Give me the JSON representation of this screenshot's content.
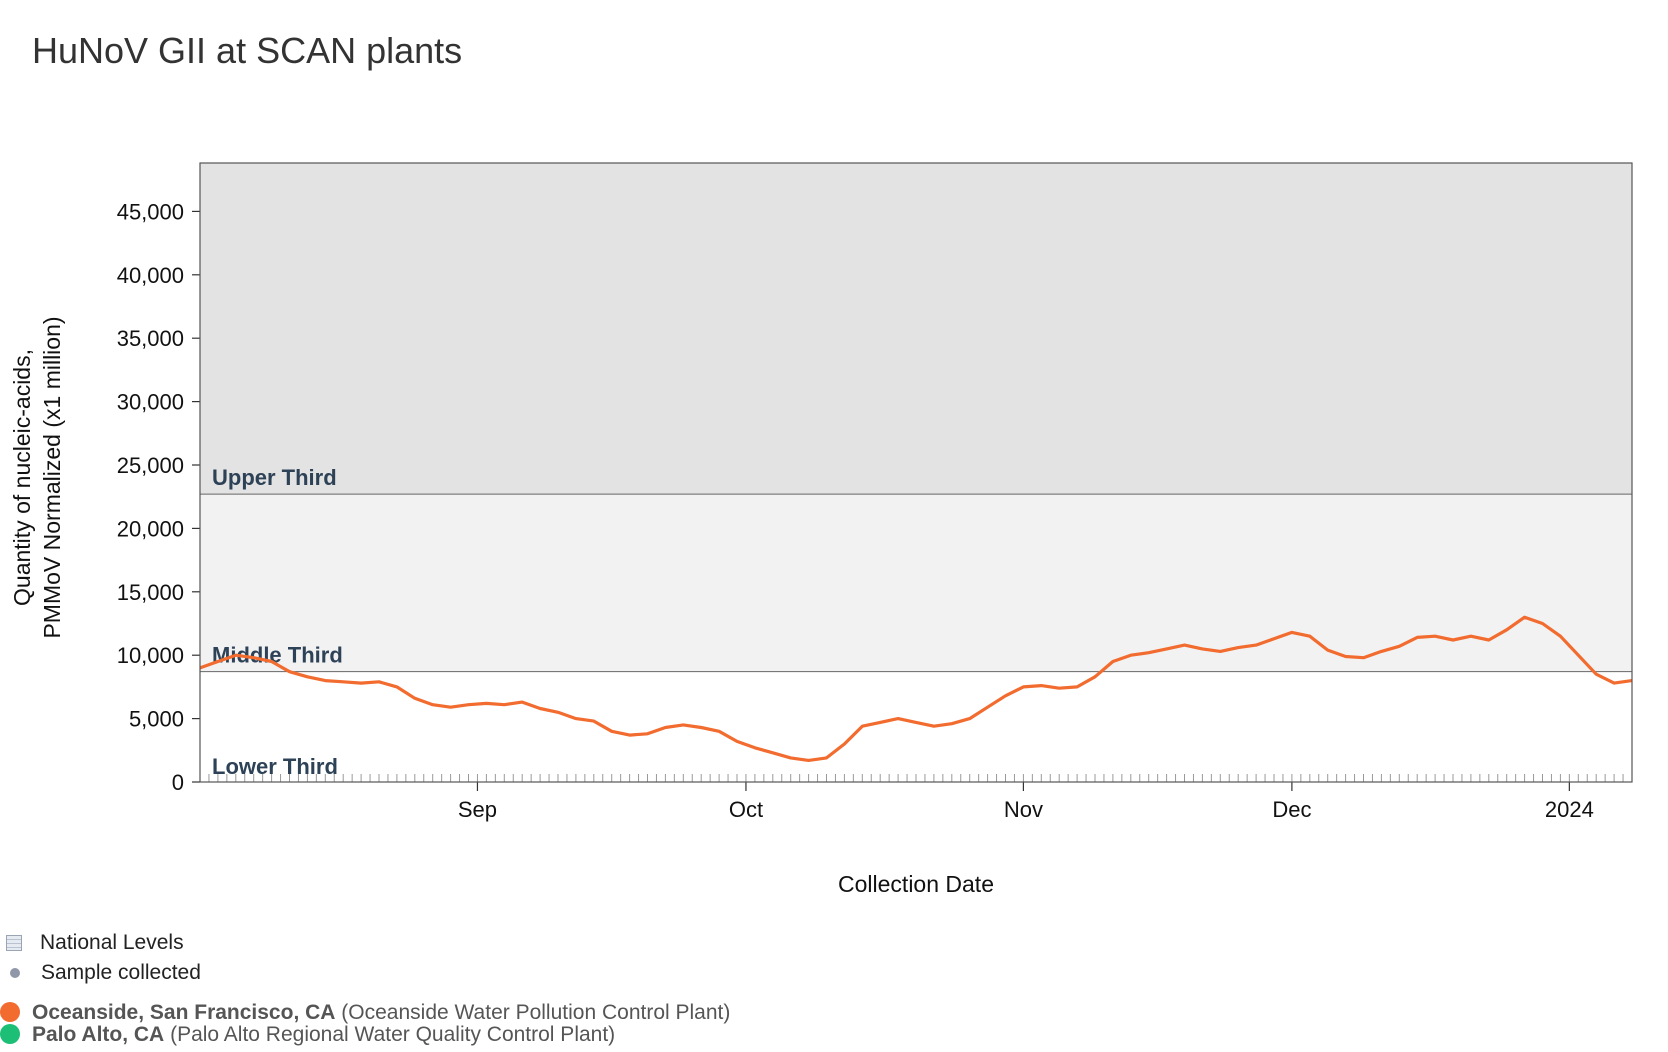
{
  "title": "HuNoV GII at SCAN plants",
  "legend": {
    "national_levels": "National Levels",
    "sample_collected": "Sample collected",
    "sites": [
      {
        "name": "Oceanside, San Francisco, CA",
        "detail": "(Oceanside Water Pollution Control Plant)",
        "color": "#f26b2f"
      },
      {
        "name": "Palo Alto, CA",
        "detail": "(Palo Alto Regional Water Quality Control Plant)",
        "color": "#1dbf76"
      }
    ]
  },
  "chart_data": {
    "type": "line",
    "title": "HuNoV GII at SCAN plants",
    "xlabel": "Collection Date",
    "ylabel": "Quantity of nucleic-acids, PMMoV Normalized (x1 million)",
    "ylim": [
      0,
      50000
    ],
    "xlim": [
      "2023-08-01",
      "2024-01-08"
    ],
    "y_ticks": [
      "0",
      "5,000",
      "10,000",
      "15,000",
      "20,000",
      "25,000",
      "30,000",
      "35,000",
      "40,000",
      "45,000"
    ],
    "x_ticks": [
      {
        "date": "2023-09-01",
        "label": "Sep"
      },
      {
        "date": "2023-10-01",
        "label": "Oct"
      },
      {
        "date": "2023-11-01",
        "label": "Nov"
      },
      {
        "date": "2023-12-01",
        "label": "Dec"
      },
      {
        "date": "2024-01-01",
        "label": "2024"
      }
    ],
    "grid": false,
    "bands": [
      {
        "label": "Lower Third",
        "from": 0,
        "to": 8700,
        "color": "#ffffff"
      },
      {
        "label": "Middle Third",
        "from": 8700,
        "to": 22700,
        "color": "#f2f2f2"
      },
      {
        "label": "Upper Third",
        "from": 22700,
        "to": 50000,
        "color": "#e3e3e3"
      }
    ],
    "series": [
      {
        "name": "Oceanside, San Francisco, CA",
        "color": "#f26b2f",
        "points": [
          [
            "2023-08-01",
            9000
          ],
          [
            "2023-08-03",
            9500
          ],
          [
            "2023-08-05",
            10000
          ],
          [
            "2023-08-07",
            9800
          ],
          [
            "2023-08-09",
            9500
          ],
          [
            "2023-08-11",
            8700
          ],
          [
            "2023-08-13",
            8300
          ],
          [
            "2023-08-15",
            8000
          ],
          [
            "2023-08-17",
            7900
          ],
          [
            "2023-08-19",
            7800
          ],
          [
            "2023-08-21",
            7900
          ],
          [
            "2023-08-23",
            7500
          ],
          [
            "2023-08-25",
            6600
          ],
          [
            "2023-08-27",
            6100
          ],
          [
            "2023-08-29",
            5900
          ],
          [
            "2023-08-31",
            6100
          ],
          [
            "2023-09-02",
            6200
          ],
          [
            "2023-09-04",
            6100
          ],
          [
            "2023-09-06",
            6300
          ],
          [
            "2023-09-08",
            5800
          ],
          [
            "2023-09-10",
            5500
          ],
          [
            "2023-09-12",
            5000
          ],
          [
            "2023-09-14",
            4800
          ],
          [
            "2023-09-16",
            4000
          ],
          [
            "2023-09-18",
            3700
          ],
          [
            "2023-09-20",
            3800
          ],
          [
            "2023-09-22",
            4300
          ],
          [
            "2023-09-24",
            4500
          ],
          [
            "2023-09-26",
            4300
          ],
          [
            "2023-09-28",
            4000
          ],
          [
            "2023-09-30",
            3200
          ],
          [
            "2023-10-02",
            2700
          ],
          [
            "2023-10-04",
            2300
          ],
          [
            "2023-10-06",
            1900
          ],
          [
            "2023-10-08",
            1700
          ],
          [
            "2023-10-10",
            1900
          ],
          [
            "2023-10-12",
            3000
          ],
          [
            "2023-10-14",
            4400
          ],
          [
            "2023-10-16",
            4700
          ],
          [
            "2023-10-18",
            5000
          ],
          [
            "2023-10-20",
            4700
          ],
          [
            "2023-10-22",
            4400
          ],
          [
            "2023-10-24",
            4600
          ],
          [
            "2023-10-26",
            5000
          ],
          [
            "2023-10-28",
            5900
          ],
          [
            "2023-10-30",
            6800
          ],
          [
            "2023-11-01",
            7500
          ],
          [
            "2023-11-03",
            7600
          ],
          [
            "2023-11-05",
            7400
          ],
          [
            "2023-11-07",
            7500
          ],
          [
            "2023-11-09",
            8300
          ],
          [
            "2023-11-11",
            9500
          ],
          [
            "2023-11-13",
            10000
          ],
          [
            "2023-11-15",
            10200
          ],
          [
            "2023-11-17",
            10500
          ],
          [
            "2023-11-19",
            10800
          ],
          [
            "2023-11-21",
            10500
          ],
          [
            "2023-11-23",
            10300
          ],
          [
            "2023-11-25",
            10600
          ],
          [
            "2023-11-27",
            10800
          ],
          [
            "2023-11-29",
            11300
          ],
          [
            "2023-12-01",
            11800
          ],
          [
            "2023-12-03",
            11500
          ],
          [
            "2023-12-05",
            10400
          ],
          [
            "2023-12-07",
            9900
          ],
          [
            "2023-12-09",
            9800
          ],
          [
            "2023-12-11",
            10300
          ],
          [
            "2023-12-13",
            10700
          ],
          [
            "2023-12-15",
            11400
          ],
          [
            "2023-12-17",
            11500
          ],
          [
            "2023-12-19",
            11200
          ],
          [
            "2023-12-21",
            11500
          ],
          [
            "2023-12-23",
            11200
          ],
          [
            "2023-12-25",
            12000
          ],
          [
            "2023-12-27",
            13000
          ],
          [
            "2023-12-29",
            12500
          ],
          [
            "2023-12-31",
            11500
          ],
          [
            "2024-01-02",
            10000
          ],
          [
            "2024-01-04",
            8500
          ],
          [
            "2024-01-06",
            7800
          ],
          [
            "2024-01-08",
            8000
          ]
        ]
      },
      {
        "name": "Palo Alto, CA",
        "color": "#1dbf76",
        "points": []
      }
    ]
  }
}
